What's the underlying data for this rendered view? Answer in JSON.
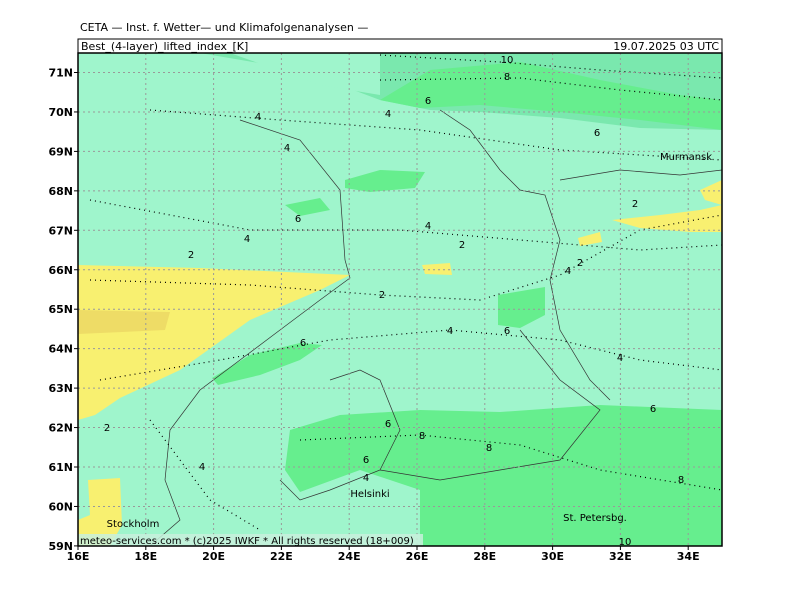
{
  "header": "CETA — Inst. f. Wetter— und Klimafolgenanalysen —",
  "title": "Best_(4-layer)_lifted_index_[K]",
  "timestamp": "19.07.2025 03 UTC",
  "lat_labels": [
    "71N",
    "70N",
    "69N",
    "68N",
    "67N",
    "66N",
    "65N",
    "64N",
    "63N",
    "62N",
    "61N",
    "60N",
    "59N"
  ],
  "lon_labels": [
    "16E",
    "18E",
    "20E",
    "22E",
    "24E",
    "26E",
    "28E",
    "30E",
    "32E",
    "34E"
  ],
  "contour_labels": [
    "10",
    "8",
    "6",
    "4",
    "4",
    "4",
    "6",
    "2",
    "6",
    "4",
    "4",
    "2",
    "2",
    "2",
    "4",
    "2",
    "4",
    "6",
    "6",
    "4",
    "6",
    "2",
    "6",
    "8",
    "8",
    "6",
    "4",
    "4",
    "8",
    "10"
  ],
  "cities": [
    "Murmansk",
    "Helsinki",
    "Stockholm",
    "St. Petersbg."
  ],
  "footer": "meteo-services.com * (c)2025 IWKF * All rights reserved (18+009)"
}
